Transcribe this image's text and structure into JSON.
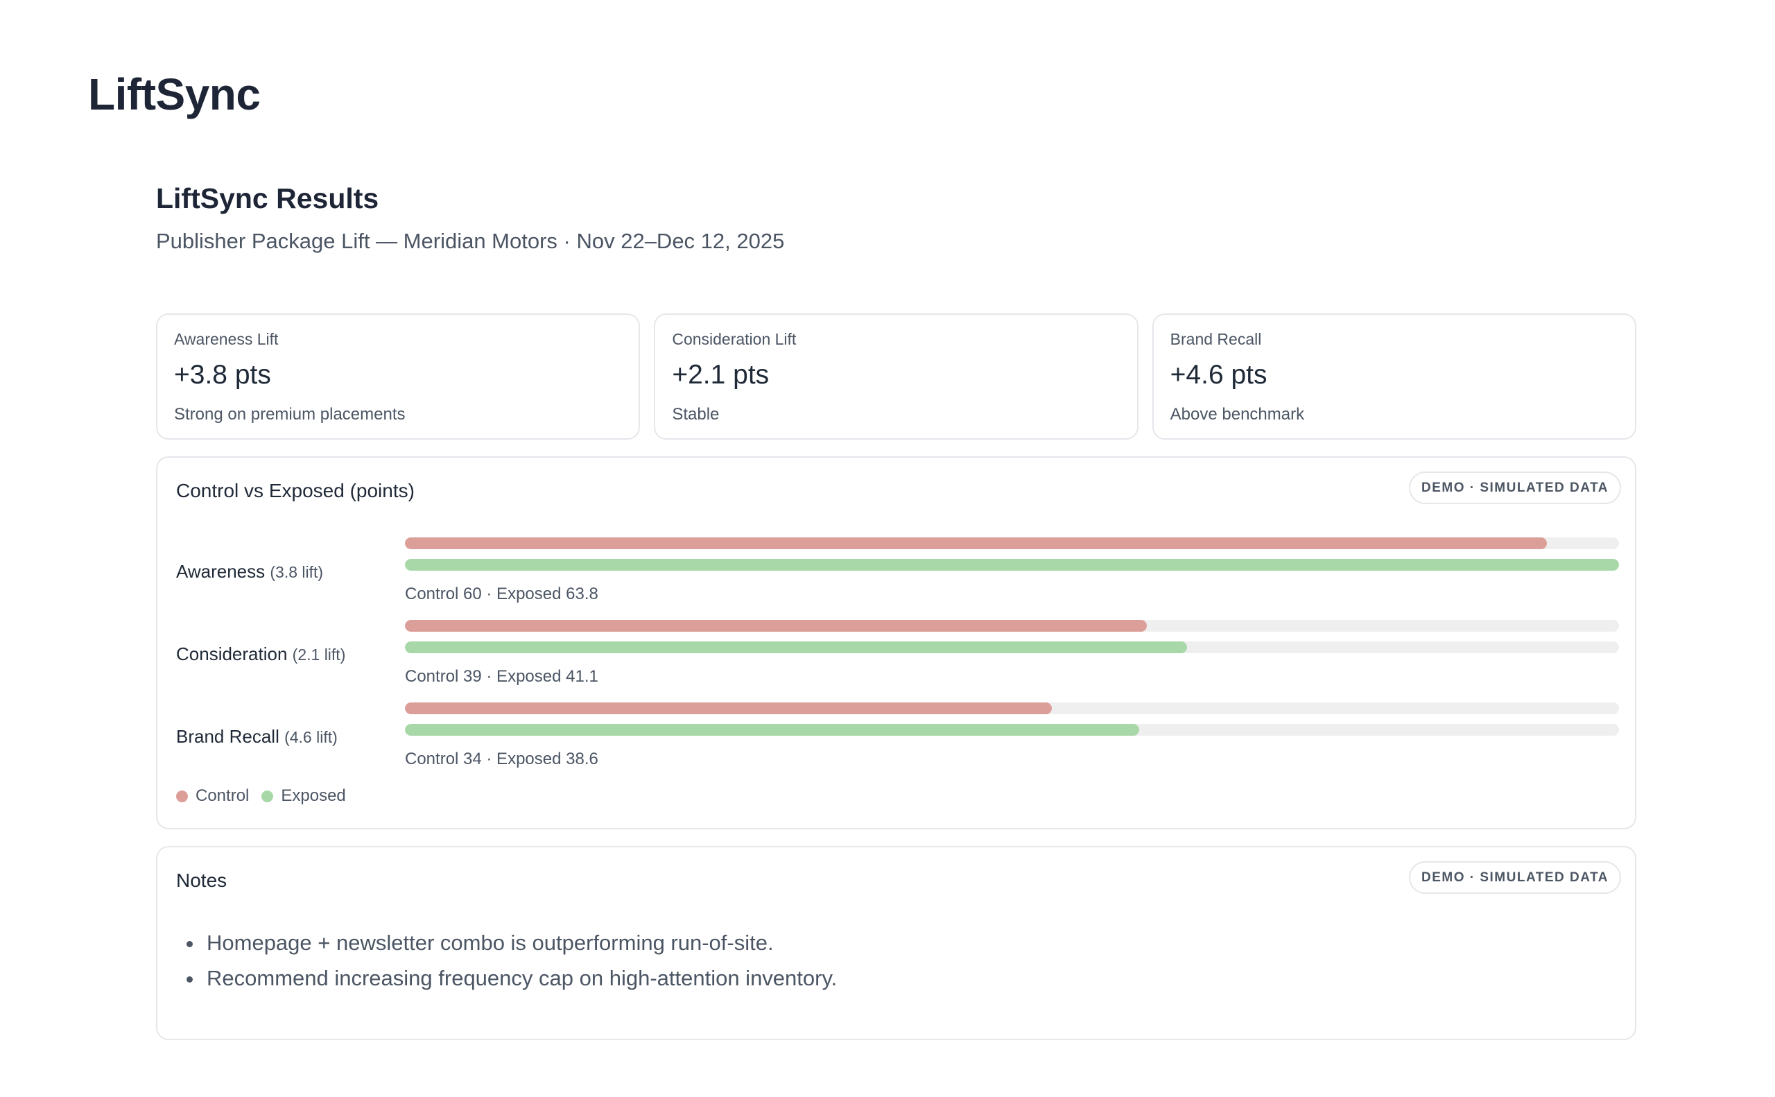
{
  "app": {
    "title": "LiftSync"
  },
  "page": {
    "title": "LiftSync Results",
    "subtitle": "Publisher Package Lift — Meridian Motors · Nov 22–Dec 12, 2025"
  },
  "kpis": [
    {
      "label": "Awareness Lift",
      "value": "+3.8 pts",
      "note": "Strong on premium placements"
    },
    {
      "label": "Consideration Lift",
      "value": "+2.1 pts",
      "note": "Stable"
    },
    {
      "label": "Brand Recall",
      "value": "+4.6 pts",
      "note": "Above benchmark"
    }
  ],
  "chart_panel": {
    "title": "Control vs Exposed (points)",
    "badge": "DEMO · SIMULATED DATA",
    "legend": {
      "control": "Control",
      "exposed": "Exposed"
    }
  },
  "chart_data": {
    "type": "bar",
    "orientation": "horizontal",
    "categories": [
      "Awareness",
      "Consideration",
      "Brand Recall"
    ],
    "category_notes": [
      "(3.8 lift)",
      "(2.1 lift)",
      "(4.6 lift)"
    ],
    "series": [
      {
        "name": "Control",
        "values": [
          60,
          39,
          34
        ],
        "color": "#dc9e98"
      },
      {
        "name": "Exposed",
        "values": [
          63.8,
          41.1,
          38.6
        ],
        "color": "#a9d8a8"
      }
    ],
    "captions": [
      "Control 60 · Exposed 63.8",
      "Control 39 · Exposed 41.1",
      "Control 34 · Exposed 38.6"
    ],
    "xlim": [
      0,
      63.8
    ],
    "grid": false,
    "legend_position": "bottom-left"
  },
  "notes_panel": {
    "title": "Notes",
    "badge": "DEMO · SIMULATED DATA",
    "items": [
      "Homepage + newsletter combo is outperforming run-of-site.",
      "Recommend increasing frequency cap on high-attention inventory."
    ]
  },
  "colors": {
    "control": "#dc9e98",
    "exposed": "#a9d8a8",
    "track": "#efefef",
    "border": "#e5e7eb"
  }
}
